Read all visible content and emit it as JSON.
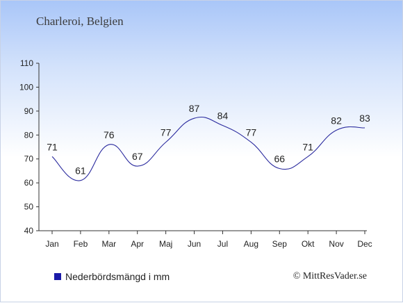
{
  "header": {
    "title": "Charleroi, Belgien"
  },
  "legend": {
    "label": "Nederbördsmängd i mm",
    "color": "#1a1aa8"
  },
  "credit": "© MittResVader.se",
  "chart_data": {
    "type": "line",
    "categories": [
      "Jan",
      "Feb",
      "Mar",
      "Apr",
      "Maj",
      "Jun",
      "Jul",
      "Aug",
      "Sep",
      "Okt",
      "Nov",
      "Dec"
    ],
    "series": [
      {
        "name": "Nederbördsmängd i mm",
        "values": [
          71,
          61,
          76,
          67,
          77,
          87,
          84,
          77,
          66,
          71,
          82,
          83
        ],
        "color": "#2a2a9e"
      }
    ],
    "ylim": [
      40,
      110
    ],
    "yticks": [
      40,
      50,
      60,
      70,
      80,
      90,
      100,
      110
    ],
    "data_labels": true,
    "grid": false,
    "legend_position": "bottom-left"
  }
}
